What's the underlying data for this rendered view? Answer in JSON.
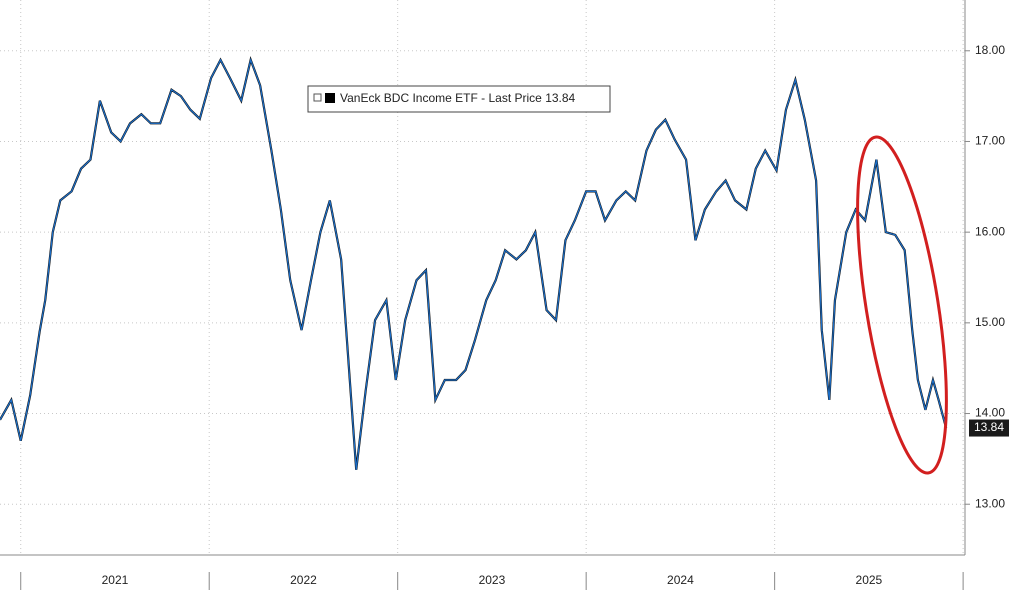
{
  "chart_data": {
    "type": "line",
    "x": [
      2020.89,
      2020.95,
      2021.0,
      2021.05,
      2021.1,
      2021.13,
      2021.17,
      2021.21,
      2021.27,
      2021.32,
      2021.37,
      2021.42,
      2021.48,
      2021.53,
      2021.58,
      2021.64,
      2021.69,
      2021.74,
      2021.8,
      2021.85,
      2021.9,
      2021.95,
      2022.01,
      2022.06,
      2022.11,
      2022.17,
      2022.22,
      2022.27,
      2022.33,
      2022.38,
      2022.43,
      2022.49,
      2022.54,
      2022.59,
      2022.64,
      2022.7,
      2022.75,
      2022.78,
      2022.83,
      2022.88,
      2022.94,
      2022.99,
      2023.04,
      2023.1,
      2023.15,
      2023.2,
      2023.25,
      2023.31,
      2023.36,
      2023.41,
      2023.47,
      2023.52,
      2023.57,
      2023.63,
      2023.68,
      2023.73,
      2023.79,
      2023.84,
      2023.89,
      2023.94,
      2024.0,
      2024.05,
      2024.1,
      2024.16,
      2024.21,
      2024.26,
      2024.32,
      2024.37,
      2024.42,
      2024.47,
      2024.53,
      2024.58,
      2024.63,
      2024.69,
      2024.74,
      2024.79,
      2024.85,
      2024.9,
      2024.95,
      2025.01,
      2025.06,
      2025.11,
      2025.16,
      2025.22,
      2025.25,
      2025.29,
      2025.32,
      2025.38,
      2025.43,
      2025.48,
      2025.54,
      2025.59,
      2025.64,
      2025.69,
      2025.73,
      2025.76,
      2025.8,
      2025.84,
      2025.87,
      2025.91
    ],
    "series": [
      {
        "name": "VanEck BDC Income ETF - Last Price",
        "color": "#1c6fc9",
        "values": [
          13.93,
          14.15,
          13.7,
          14.2,
          14.9,
          15.25,
          16.0,
          16.35,
          16.45,
          16.7,
          16.8,
          17.45,
          17.1,
          17.0,
          17.2,
          17.3,
          17.2,
          17.2,
          17.57,
          17.5,
          17.35,
          17.25,
          17.7,
          17.9,
          17.7,
          17.45,
          17.9,
          17.62,
          16.9,
          16.25,
          15.47,
          14.92,
          15.47,
          16.0,
          16.35,
          15.7,
          14.25,
          13.38,
          14.25,
          15.03,
          15.25,
          14.37,
          15.03,
          15.47,
          15.58,
          14.15,
          14.37,
          14.37,
          14.48,
          14.81,
          15.25,
          15.47,
          15.8,
          15.7,
          15.8,
          16.0,
          15.14,
          15.03,
          15.91,
          16.13,
          16.45,
          16.45,
          16.13,
          16.35,
          16.45,
          16.35,
          16.9,
          17.13,
          17.24,
          17.02,
          16.8,
          15.91,
          16.25,
          16.45,
          16.57,
          16.35,
          16.25,
          16.7,
          16.9,
          16.68,
          17.35,
          17.68,
          17.24,
          16.57,
          14.92,
          14.15,
          15.25,
          16.0,
          16.25,
          16.13,
          16.8,
          16.0,
          15.97,
          15.8,
          14.92,
          14.37,
          14.04,
          14.37,
          14.15,
          13.84
        ]
      }
    ],
    "xlim": [
      2020.89,
      2026.01
    ],
    "xticks": [
      {
        "value": 2021.5,
        "label": "2021"
      },
      {
        "value": 2022.5,
        "label": "2022"
      },
      {
        "value": 2023.5,
        "label": "2023"
      },
      {
        "value": 2024.5,
        "label": "2024"
      },
      {
        "value": 2025.5,
        "label": "2025"
      }
    ],
    "xminor": [
      2021,
      2022,
      2023,
      2024,
      2025,
      2026
    ],
    "ylim": [
      12.44,
      18.56
    ],
    "yticks": [
      {
        "value": 13,
        "label": "13.00"
      },
      {
        "value": 14,
        "label": "14.00"
      },
      {
        "value": 15,
        "label": "15.00"
      },
      {
        "value": 16,
        "label": "16.00"
      },
      {
        "value": 17,
        "label": "17.00"
      },
      {
        "value": 18,
        "label": "18.00"
      }
    ],
    "grid": true,
    "legend": "top-center"
  }
}
